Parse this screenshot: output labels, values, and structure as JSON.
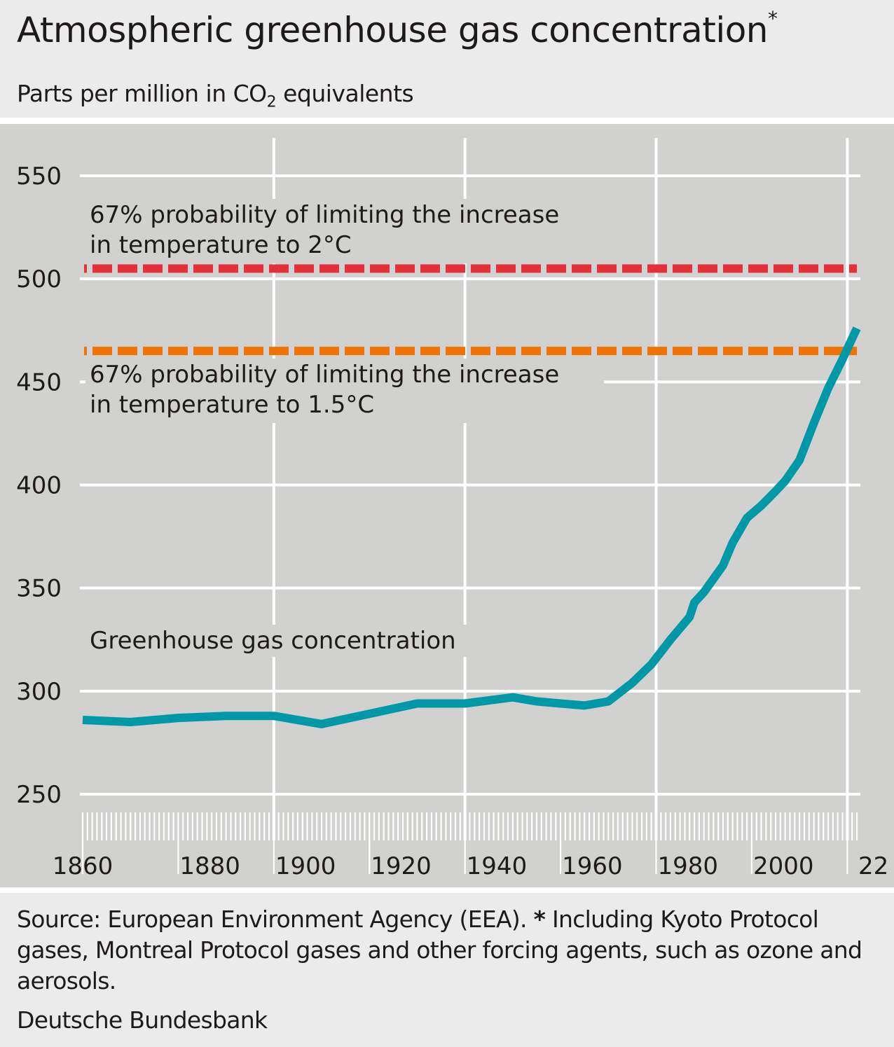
{
  "header": {
    "title": "Atmospheric greenhouse gas concentration",
    "title_marker": "*",
    "subtitle_pre": "Parts per million in CO",
    "subtitle_sub": "2",
    "subtitle_post": " equivalents"
  },
  "footer": {
    "source_pre": "Source: European Environment Agency (EEA). ",
    "source_marker": "*",
    "source_post": " Including Kyoto Protocol gases, Montreal Protocol gases and other forcing agents, such as ozone and aerosols.",
    "organization": "Deutsche Bundesbank"
  },
  "colors": {
    "line": "#0097a7",
    "threshold_2c": "#e3303a",
    "threshold_1_5c": "#ef7300",
    "grid": "#ffffff",
    "background": "#d1d1d0"
  },
  "chart_data": {
    "type": "line",
    "title": "Atmospheric greenhouse gas concentration*",
    "subtitle": "Parts per million in CO2 equivalents",
    "xlabel": "",
    "ylabel": "Parts per million in CO2 equivalents",
    "xlim": [
      1860,
      2022
    ],
    "ylim": [
      250,
      550
    ],
    "grid": true,
    "y_ticks": [
      250,
      300,
      350,
      400,
      450,
      500,
      550
    ],
    "x_ticks": [
      {
        "value": 1860,
        "label": "1860"
      },
      {
        "value": 1880,
        "label": "1880"
      },
      {
        "value": 1900,
        "label": "1900"
      },
      {
        "value": 1920,
        "label": "1920"
      },
      {
        "value": 1940,
        "label": "1940"
      },
      {
        "value": 1960,
        "label": "1960"
      },
      {
        "value": 1980,
        "label": "1980"
      },
      {
        "value": 2000,
        "label": "2000"
      },
      {
        "value": 2022,
        "label": "22"
      }
    ],
    "x_gridlines": [
      1900,
      1940,
      1980,
      2020
    ],
    "series": [
      {
        "name": "Greenhouse gas concentration",
        "label": "Greenhouse gas concentration",
        "x": [
          1860,
          1870,
          1880,
          1890,
          1900,
          1910,
          1920,
          1930,
          1940,
          1950,
          1955,
          1960,
          1965,
          1970,
          1975,
          1979,
          1983,
          1987,
          1988,
          1990,
          1994,
          1996,
          1999,
          2002,
          2005,
          2007,
          2010,
          2013,
          2016,
          2019,
          2022
        ],
        "values": [
          286,
          285,
          287,
          288,
          288,
          284,
          289,
          294,
          294,
          297,
          295,
          294,
          293,
          295,
          304,
          313,
          325,
          336,
          343,
          348,
          361,
          372,
          384,
          390,
          397,
          402,
          412,
          430,
          447,
          461,
          476
        ]
      }
    ],
    "thresholds": [
      {
        "name": "67% probability of limiting the increase in temperature to 2°C",
        "label_line1": "67% probability of limiting the increase",
        "label_line2": "in temperature to 2°C",
        "value": 505,
        "style": "dashed",
        "color": "#e3303a"
      },
      {
        "name": "67% probability of limiting the increase in temperature to 1.5°C",
        "label_line1": "67% probability of limiting the increase",
        "label_line2": "in temperature to 1.5°C",
        "value": 465,
        "style": "dashed",
        "color": "#ef7300"
      }
    ]
  }
}
